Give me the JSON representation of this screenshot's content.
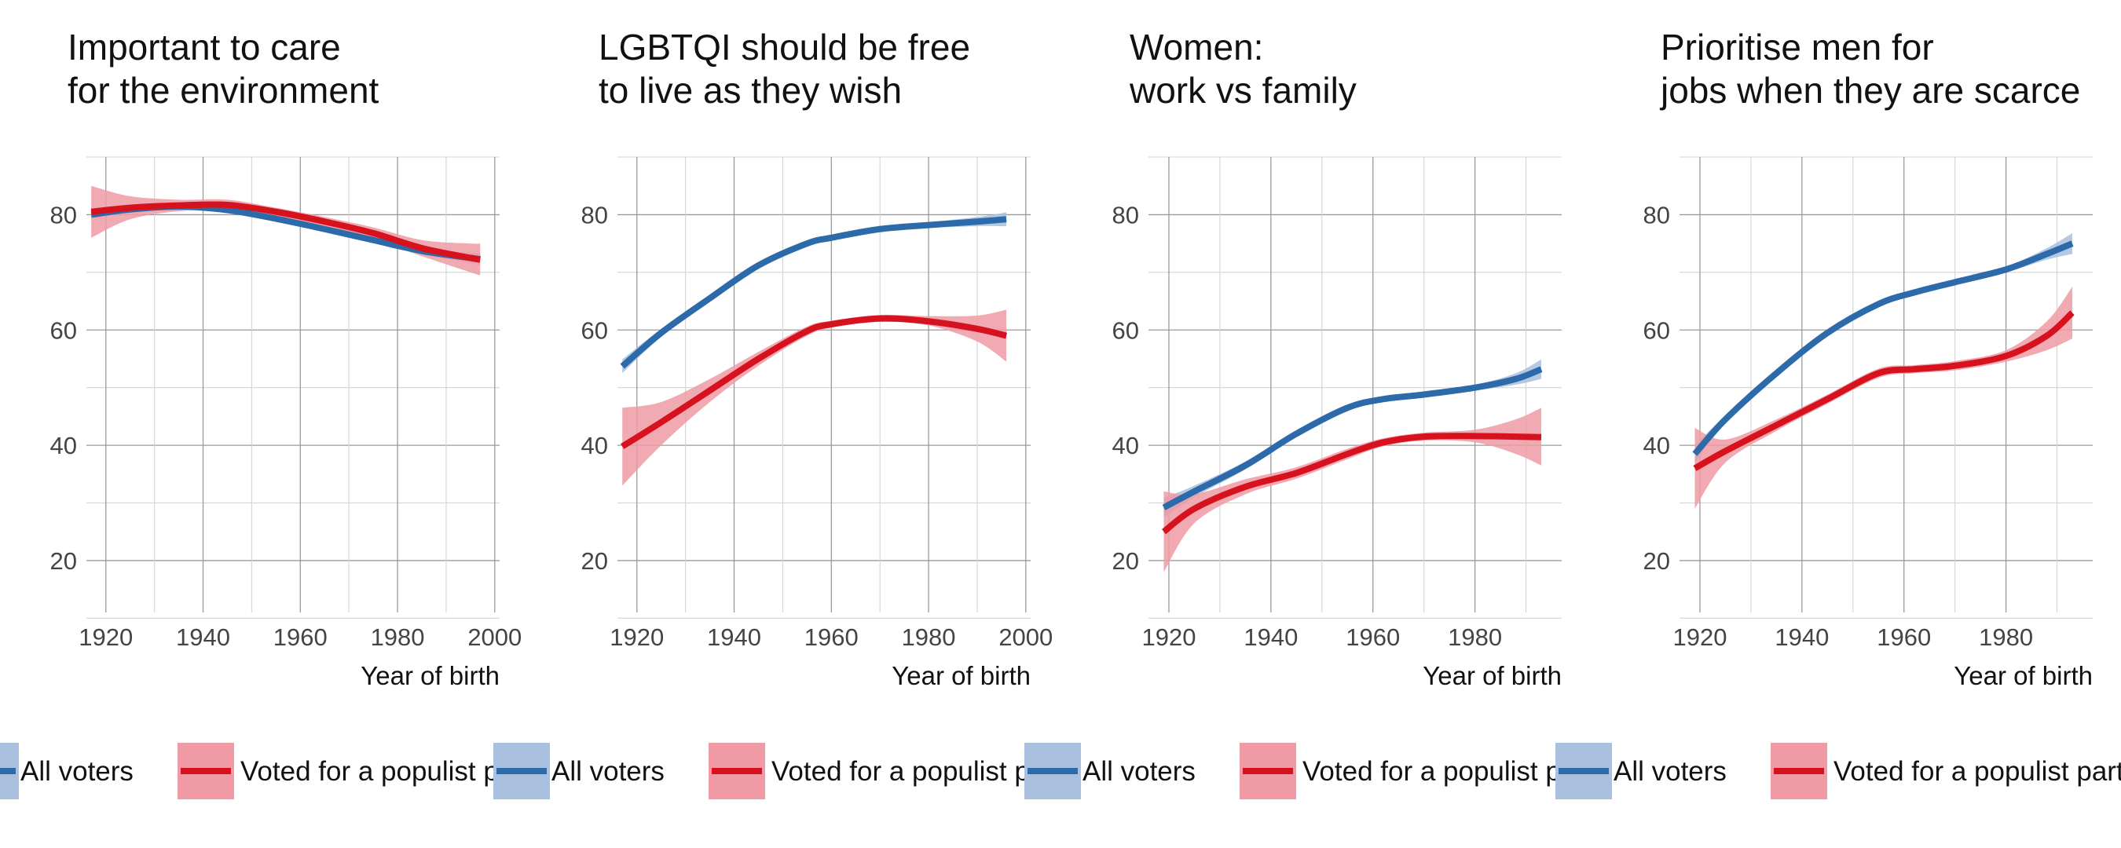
{
  "chart_data": [
    {
      "type": "line",
      "title": [
        "Important to care",
        "for the environment"
      ],
      "xlabel": "Year of birth",
      "ylabel": "",
      "xlim": [
        1916,
        2001
      ],
      "ylim": [
        11,
        90
      ],
      "xticks": [
        1920,
        1940,
        1960,
        1980,
        2000
      ],
      "yticks": [
        20,
        40,
        60,
        80
      ],
      "grid": true,
      "series": [
        {
          "name": "All voters",
          "color": "#2c6aaa",
          "band_color": "#a9c0de",
          "x": [
            1917,
            1925,
            1935,
            1945,
            1955,
            1965,
            1975,
            1985,
            1995,
            1997
          ],
          "y": [
            80.0,
            80.9,
            81.4,
            80.8,
            79.3,
            77.5,
            75.6,
            73.7,
            72.5,
            72.3
          ],
          "lower": [
            79.5,
            80.6,
            81.1,
            80.5,
            79.0,
            77.2,
            75.2,
            73.2,
            71.6,
            71.2
          ],
          "upper": [
            80.5,
            81.2,
            81.7,
            81.1,
            79.6,
            77.8,
            76.0,
            74.2,
            73.4,
            73.4
          ]
        },
        {
          "name": "Voted for a populist party",
          "color": "#d7121f",
          "band_color": "#ef9aa4",
          "x": [
            1917,
            1925,
            1935,
            1945,
            1955,
            1965,
            1975,
            1985,
            1995,
            1997
          ],
          "y": [
            80.5,
            81.2,
            81.6,
            81.7,
            80.5,
            78.8,
            76.8,
            74.2,
            72.5,
            72.2
          ],
          "lower": [
            76.0,
            79.2,
            80.6,
            80.8,
            79.8,
            78.0,
            75.8,
            72.8,
            70.0,
            69.5
          ],
          "upper": [
            85.0,
            83.2,
            82.6,
            82.6,
            81.2,
            79.6,
            77.8,
            75.6,
            75.0,
            75.0
          ]
        }
      ]
    },
    {
      "type": "line",
      "title": [
        "LGBTQI should be free",
        "to live as they wish"
      ],
      "xlabel": "Year of birth",
      "ylabel": "",
      "xlim": [
        1916,
        2001
      ],
      "ylim": [
        11,
        90
      ],
      "xticks": [
        1920,
        1940,
        1960,
        1980,
        2000
      ],
      "yticks": [
        20,
        40,
        60,
        80
      ],
      "grid": true,
      "series": [
        {
          "name": "All voters",
          "color": "#2c6aaa",
          "band_color": "#a9c0de",
          "x": [
            1917,
            1925,
            1935,
            1945,
            1955,
            1960,
            1970,
            1980,
            1990,
            1996
          ],
          "y": [
            53.7,
            59.5,
            65.5,
            71.2,
            75.0,
            76.0,
            77.5,
            78.2,
            78.8,
            79.2
          ],
          "lower": [
            52.5,
            58.8,
            65.0,
            70.8,
            74.6,
            75.6,
            77.1,
            77.7,
            78.0,
            78.0
          ],
          "upper": [
            54.9,
            60.2,
            66.0,
            71.6,
            75.4,
            76.4,
            77.9,
            78.7,
            79.6,
            80.4
          ]
        },
        {
          "name": "Voted for a populist party",
          "color": "#d7121f",
          "band_color": "#ef9aa4",
          "x": [
            1917,
            1925,
            1935,
            1945,
            1955,
            1960,
            1970,
            1980,
            1990,
            1996
          ],
          "y": [
            39.8,
            44.0,
            49.5,
            55.0,
            59.8,
            61.0,
            62.0,
            61.5,
            60.2,
            59.0
          ],
          "lower": [
            33.0,
            40.0,
            47.5,
            53.8,
            59.0,
            60.4,
            61.4,
            60.8,
            58.0,
            54.5
          ],
          "upper": [
            46.5,
            47.5,
            51.5,
            56.2,
            60.6,
            61.6,
            62.6,
            62.4,
            62.5,
            63.5
          ]
        }
      ]
    },
    {
      "type": "line",
      "title": [
        "Women:",
        "work vs family"
      ],
      "xlabel": "Year of birth",
      "ylabel": "",
      "xlim": [
        1916,
        1997
      ],
      "ylim": [
        11,
        90
      ],
      "xticks": [
        1920,
        1940,
        1960,
        1980
      ],
      "yticks": [
        20,
        40,
        60,
        80
      ],
      "grid": true,
      "series": [
        {
          "name": "All voters",
          "color": "#2c6aaa",
          "band_color": "#a9c0de",
          "x": [
            1919,
            1925,
            1935,
            1945,
            1955,
            1962,
            1970,
            1980,
            1988,
            1993
          ],
          "y": [
            29.2,
            32.0,
            36.5,
            42.0,
            46.5,
            48.0,
            48.8,
            50.0,
            51.5,
            53.2
          ],
          "lower": [
            27.5,
            31.0,
            35.8,
            41.5,
            46.0,
            47.6,
            48.4,
            49.5,
            50.5,
            51.5
          ],
          "upper": [
            30.9,
            33.0,
            37.2,
            42.5,
            47.0,
            48.4,
            49.2,
            50.5,
            52.5,
            54.9
          ]
        },
        {
          "name": "Voted for a populist party",
          "color": "#d7121f",
          "band_color": "#ef9aa4",
          "x": [
            1919,
            1925,
            1935,
            1945,
            1955,
            1962,
            1970,
            1980,
            1988,
            1993
          ],
          "y": [
            25.0,
            29.0,
            32.8,
            35.2,
            38.5,
            40.5,
            41.5,
            41.6,
            41.5,
            41.4
          ],
          "lower": [
            18.0,
            26.5,
            31.5,
            34.2,
            37.6,
            39.8,
            40.8,
            40.5,
            38.5,
            36.5
          ],
          "upper": [
            32.0,
            31.5,
            34.1,
            36.2,
            39.4,
            41.2,
            42.2,
            42.7,
            44.5,
            46.5
          ]
        }
      ]
    },
    {
      "type": "line",
      "title": [
        "Prioritise men for",
        "jobs when they are scarce"
      ],
      "xlabel": "Year of birth",
      "ylabel": "",
      "xlim": [
        1916,
        1997
      ],
      "ylim": [
        11,
        90
      ],
      "xticks": [
        1920,
        1940,
        1960,
        1980
      ],
      "yticks": [
        20,
        40,
        60,
        80
      ],
      "grid": true,
      "series": [
        {
          "name": "All voters",
          "color": "#2c6aaa",
          "band_color": "#a9c0de",
          "x": [
            1919,
            1925,
            1935,
            1945,
            1955,
            1962,
            1970,
            1980,
            1988,
            1993
          ],
          "y": [
            38.5,
            44.5,
            52.5,
            59.5,
            64.5,
            66.5,
            68.3,
            70.5,
            73.2,
            75.0
          ],
          "lower": [
            37.0,
            43.8,
            52.0,
            59.0,
            64.1,
            66.1,
            67.9,
            70.0,
            72.2,
            73.2
          ],
          "upper": [
            40.0,
            45.2,
            53.0,
            60.0,
            64.9,
            66.9,
            68.7,
            71.0,
            74.2,
            76.8
          ]
        },
        {
          "name": "Voted for a populist party",
          "color": "#d7121f",
          "band_color": "#ef9aa4",
          "x": [
            1919,
            1925,
            1935,
            1945,
            1955,
            1962,
            1970,
            1980,
            1988,
            1993
          ],
          "y": [
            36.0,
            39.0,
            43.5,
            48.0,
            52.5,
            53.2,
            53.8,
            55.5,
            59.0,
            63.0
          ],
          "lower": [
            29.0,
            37.0,
            42.5,
            47.2,
            51.7,
            52.5,
            53.0,
            54.5,
            56.5,
            58.5
          ],
          "upper": [
            43.0,
            41.0,
            44.5,
            48.8,
            53.3,
            53.9,
            54.6,
            56.5,
            61.5,
            67.5
          ]
        }
      ]
    }
  ]
}
